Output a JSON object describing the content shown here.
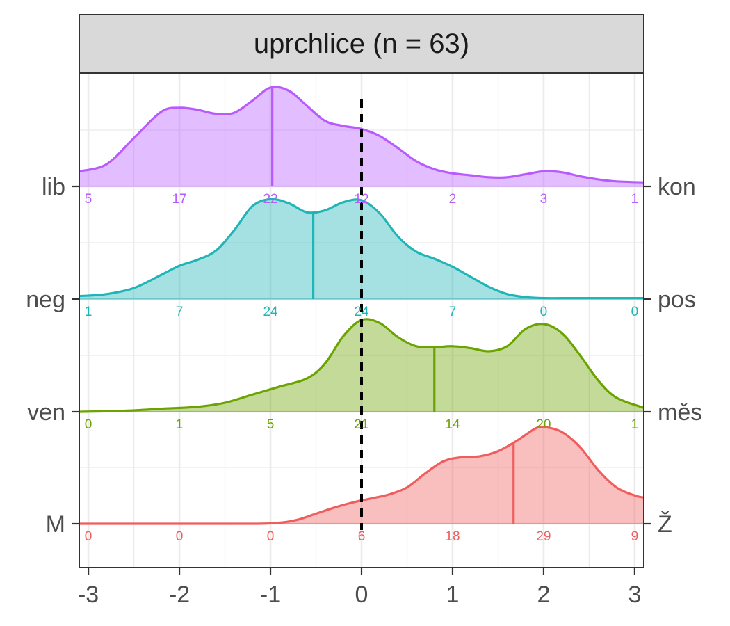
{
  "chart_data": {
    "type": "area",
    "title": "uprchlice (n = 63)",
    "xlim": [
      -3.1,
      3.1
    ],
    "x_ticks": [
      -3,
      -2,
      -1,
      0,
      1,
      2,
      3
    ],
    "x_tick_labels": [
      "-3",
      "-2",
      "-1",
      "0",
      "1",
      "2",
      "3"
    ],
    "reference_line_x": 0,
    "grid": true,
    "series": [
      {
        "left_label": "lib",
        "right_label": "kon",
        "color": "#B75BFF",
        "counts": [
          5,
          17,
          22,
          12,
          2,
          3,
          1
        ],
        "mean": -0.98,
        "density": [
          [
            -3.1,
            0.15
          ],
          [
            -2.8,
            0.22
          ],
          [
            -2.5,
            0.48
          ],
          [
            -2.2,
            0.74
          ],
          [
            -2.0,
            0.78
          ],
          [
            -1.8,
            0.76
          ],
          [
            -1.6,
            0.72
          ],
          [
            -1.4,
            0.73
          ],
          [
            -1.2,
            0.85
          ],
          [
            -1.0,
            0.98
          ],
          [
            -0.8,
            0.95
          ],
          [
            -0.6,
            0.8
          ],
          [
            -0.4,
            0.65
          ],
          [
            -0.2,
            0.6
          ],
          [
            0.0,
            0.57
          ],
          [
            0.2,
            0.5
          ],
          [
            0.4,
            0.38
          ],
          [
            0.6,
            0.25
          ],
          [
            0.8,
            0.17
          ],
          [
            1.0,
            0.13
          ],
          [
            1.2,
            0.11
          ],
          [
            1.4,
            0.09
          ],
          [
            1.6,
            0.09
          ],
          [
            1.8,
            0.12
          ],
          [
            2.0,
            0.15
          ],
          [
            2.2,
            0.14
          ],
          [
            2.4,
            0.1
          ],
          [
            2.6,
            0.07
          ],
          [
            2.8,
            0.05
          ],
          [
            3.1,
            0.04
          ]
        ]
      },
      {
        "left_label": "neg",
        "right_label": "pos",
        "color": "#1FB5B6",
        "counts": [
          1,
          7,
          24,
          24,
          7,
          0,
          0
        ],
        "mean": -0.53,
        "density": [
          [
            -3.1,
            0.03
          ],
          [
            -2.8,
            0.05
          ],
          [
            -2.5,
            0.11
          ],
          [
            -2.2,
            0.24
          ],
          [
            -2.0,
            0.33
          ],
          [
            -1.8,
            0.39
          ],
          [
            -1.6,
            0.48
          ],
          [
            -1.4,
            0.68
          ],
          [
            -1.2,
            0.92
          ],
          [
            -1.0,
            0.99
          ],
          [
            -0.8,
            0.95
          ],
          [
            -0.6,
            0.86
          ],
          [
            -0.4,
            0.88
          ],
          [
            -0.2,
            0.96
          ],
          [
            0.0,
            0.98
          ],
          [
            0.2,
            0.85
          ],
          [
            0.4,
            0.62
          ],
          [
            0.6,
            0.47
          ],
          [
            0.8,
            0.4
          ],
          [
            1.0,
            0.32
          ],
          [
            1.2,
            0.22
          ],
          [
            1.4,
            0.12
          ],
          [
            1.6,
            0.05
          ],
          [
            1.8,
            0.02
          ],
          [
            2.0,
            0.01
          ],
          [
            2.4,
            0.01
          ],
          [
            3.1,
            0.01
          ]
        ]
      },
      {
        "left_label": "ven",
        "right_label": "měs",
        "color": "#6BA300",
        "counts": [
          0,
          1,
          5,
          21,
          14,
          20,
          1
        ],
        "mean": 0.8,
        "density": [
          [
            -3.1,
            0.0
          ],
          [
            -2.6,
            0.01
          ],
          [
            -2.2,
            0.03
          ],
          [
            -1.8,
            0.05
          ],
          [
            -1.5,
            0.09
          ],
          [
            -1.2,
            0.17
          ],
          [
            -0.9,
            0.25
          ],
          [
            -0.6,
            0.33
          ],
          [
            -0.4,
            0.48
          ],
          [
            -0.2,
            0.75
          ],
          [
            0.0,
            0.91
          ],
          [
            0.2,
            0.88
          ],
          [
            0.4,
            0.74
          ],
          [
            0.6,
            0.65
          ],
          [
            0.8,
            0.64
          ],
          [
            1.0,
            0.65
          ],
          [
            1.2,
            0.63
          ],
          [
            1.4,
            0.6
          ],
          [
            1.6,
            0.65
          ],
          [
            1.8,
            0.82
          ],
          [
            2.0,
            0.87
          ],
          [
            2.2,
            0.78
          ],
          [
            2.4,
            0.56
          ],
          [
            2.6,
            0.31
          ],
          [
            2.8,
            0.14
          ],
          [
            3.1,
            0.04
          ]
        ]
      },
      {
        "left_label": "M",
        "right_label": "Ž",
        "color": "#EF5D5D",
        "counts": [
          0,
          0,
          0,
          6,
          18,
          29,
          9
        ],
        "mean": 1.67,
        "density": [
          [
            -3.1,
            0.0
          ],
          [
            -2.0,
            0.0
          ],
          [
            -1.2,
            0.0
          ],
          [
            -0.9,
            0.01
          ],
          [
            -0.7,
            0.04
          ],
          [
            -0.5,
            0.1
          ],
          [
            -0.3,
            0.16
          ],
          [
            -0.1,
            0.21
          ],
          [
            0.1,
            0.25
          ],
          [
            0.3,
            0.29
          ],
          [
            0.5,
            0.36
          ],
          [
            0.7,
            0.5
          ],
          [
            0.9,
            0.62
          ],
          [
            1.1,
            0.66
          ],
          [
            1.3,
            0.67
          ],
          [
            1.5,
            0.72
          ],
          [
            1.7,
            0.82
          ],
          [
            1.9,
            0.94
          ],
          [
            2.0,
            0.96
          ],
          [
            2.2,
            0.91
          ],
          [
            2.4,
            0.76
          ],
          [
            2.6,
            0.53
          ],
          [
            2.8,
            0.36
          ],
          [
            3.0,
            0.28
          ],
          [
            3.1,
            0.26
          ]
        ]
      }
    ]
  }
}
